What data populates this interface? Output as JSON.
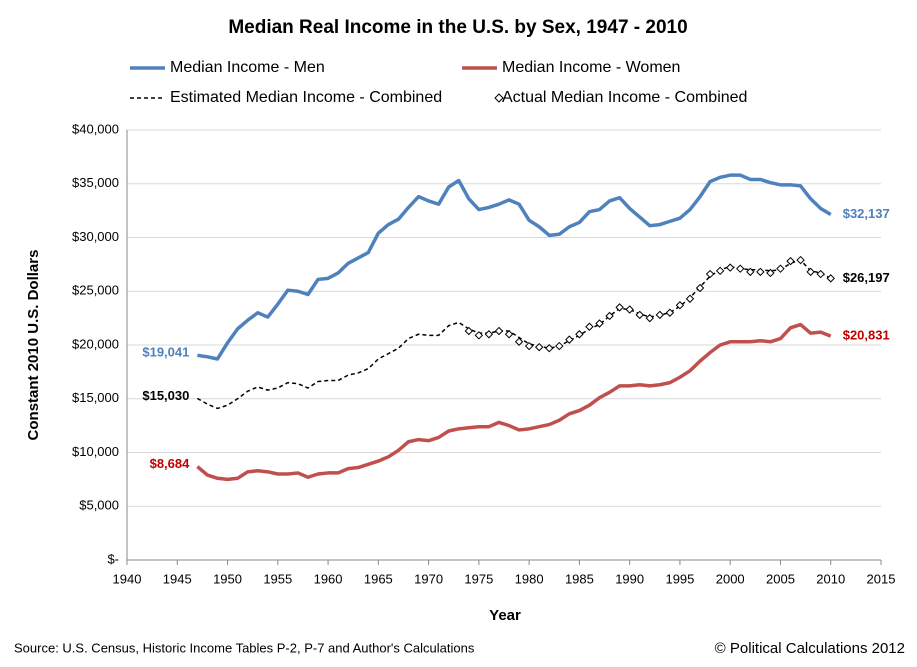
{
  "chart_data": {
    "type": "line",
    "title": "Median Real Income in the U.S. by Sex, 1947 - 2010",
    "x_label": "Year",
    "y_label": "Constant 2010 U.S. Dollars",
    "source": "Source: U.S. Census, Historic Income Tables P-2, P-7 and Author's Calculations",
    "credit": "© Political Calculations 2012",
    "xlim": [
      1940,
      2015
    ],
    "xticks": [
      1940,
      1945,
      1950,
      1955,
      1960,
      1965,
      1970,
      1975,
      1980,
      1985,
      1990,
      1995,
      2000,
      2005,
      2010,
      2015
    ],
    "ylim": [
      0,
      40000
    ],
    "yticks": [
      {
        "value": 0,
        "label": "$-"
      },
      {
        "value": 5000,
        "label": "$5,000"
      },
      {
        "value": 10000,
        "label": "$10,000"
      },
      {
        "value": 15000,
        "label": "$15,000"
      },
      {
        "value": 20000,
        "label": "$20,000"
      },
      {
        "value": 25000,
        "label": "$25,000"
      },
      {
        "value": 30000,
        "label": "$30,000"
      },
      {
        "value": 35000,
        "label": "$35,000"
      },
      {
        "value": 40000,
        "label": "$40,000"
      }
    ],
    "grid": true,
    "x": [
      1947,
      1948,
      1949,
      1950,
      1951,
      1952,
      1953,
      1954,
      1955,
      1956,
      1957,
      1958,
      1959,
      1960,
      1961,
      1962,
      1963,
      1964,
      1965,
      1966,
      1967,
      1968,
      1969,
      1970,
      1971,
      1972,
      1973,
      1974,
      1975,
      1976,
      1977,
      1978,
      1979,
      1980,
      1981,
      1982,
      1983,
      1984,
      1985,
      1986,
      1987,
      1988,
      1989,
      1990,
      1991,
      1992,
      1993,
      1994,
      1995,
      1996,
      1997,
      1998,
      1999,
      2000,
      2001,
      2002,
      2003,
      2004,
      2005,
      2006,
      2007,
      2008,
      2009,
      2010
    ],
    "series": [
      {
        "name": "Median Income - Men",
        "color": "#4f81bd",
        "style": "line",
        "label_color": "#4f81bd",
        "values": [
          19041,
          18900,
          18700,
          20200,
          21500,
          22300,
          23000,
          22600,
          23800,
          25100,
          25000,
          24700,
          26100,
          26200,
          26700,
          27600,
          28100,
          28600,
          30400,
          31200,
          31700,
          32800,
          33800,
          33400,
          33100,
          34700,
          35300,
          33600,
          32600,
          32800,
          33100,
          33500,
          33100,
          31600,
          31000,
          30200,
          30300,
          31000,
          31400,
          32400,
          32600,
          33400,
          33700,
          32700,
          31900,
          31100,
          31200,
          31500,
          31800,
          32600,
          33800,
          35200,
          35600,
          35800,
          35800,
          35400,
          35400,
          35100,
          34900,
          34900,
          34800,
          33600,
          32700,
          32137
        ],
        "value_labels": [
          "$19,041",
          null,
          null,
          null,
          null,
          null,
          null,
          null,
          null,
          null,
          null,
          null,
          null,
          null,
          null,
          null,
          null,
          null,
          null,
          null,
          null,
          null,
          null,
          null,
          null,
          null,
          null,
          null,
          null,
          null,
          null,
          null,
          null,
          null,
          null,
          null,
          null,
          null,
          null,
          null,
          null,
          null,
          null,
          null,
          null,
          null,
          null,
          null,
          null,
          null,
          null,
          null,
          null,
          null,
          null,
          null,
          null,
          null,
          null,
          null,
          null,
          null,
          null,
          "$32,137"
        ]
      },
      {
        "name": "Median Income - Women",
        "color": "#c0504d",
        "style": "line",
        "label_color": "#c00000",
        "values": [
          8684,
          7900,
          7600,
          7500,
          7600,
          8200,
          8300,
          8200,
          8000,
          8000,
          8100,
          7700,
          8000,
          8100,
          8100,
          8500,
          8600,
          8900,
          9200,
          9600,
          10200,
          11000,
          11200,
          11100,
          11400,
          12000,
          12200,
          12300,
          12400,
          12400,
          12800,
          12500,
          12100,
          12200,
          12400,
          12600,
          13000,
          13600,
          13900,
          14400,
          15100,
          15600,
          16200,
          16200,
          16300,
          16200,
          16300,
          16500,
          17000,
          17600,
          18500,
          19300,
          20000,
          20300,
          20300,
          20300,
          20400,
          20300,
          20600,
          21600,
          21900,
          21100,
          21200,
          20831
        ],
        "value_labels": [
          "$8,684",
          null,
          null,
          null,
          null,
          null,
          null,
          null,
          null,
          null,
          null,
          null,
          null,
          null,
          null,
          null,
          null,
          null,
          null,
          null,
          null,
          null,
          null,
          null,
          null,
          null,
          null,
          null,
          null,
          null,
          null,
          null,
          null,
          null,
          null,
          null,
          null,
          null,
          null,
          null,
          null,
          null,
          null,
          null,
          null,
          null,
          null,
          null,
          null,
          null,
          null,
          null,
          null,
          null,
          null,
          null,
          null,
          null,
          null,
          null,
          null,
          null,
          null,
          "$20,831"
        ]
      },
      {
        "name": "Estimated Median Income - Combined",
        "color": "#000000",
        "style": "dashed",
        "label_color": "#000000",
        "values": [
          15030,
          14500,
          14100,
          14400,
          15000,
          15700,
          16100,
          15800,
          16000,
          16500,
          16400,
          16000,
          16600,
          16700,
          16700,
          17200,
          17400,
          17800,
          18700,
          19200,
          19700,
          20600,
          21000,
          20900,
          20900,
          21800,
          22100,
          21500,
          21100,
          21100,
          21300,
          21300,
          20700,
          20100,
          19900,
          19700,
          19900,
          20400,
          20900,
          21500,
          21900,
          22700,
          23400,
          23300,
          22900,
          22600,
          22800,
          23000,
          23600,
          24400,
          25400,
          26400,
          27000,
          27300,
          27100,
          27000,
          27000,
          26900,
          27000,
          27600,
          27900,
          26900,
          26700,
          26197
        ],
        "value_labels": [
          "$15,030",
          null,
          null,
          null,
          null,
          null,
          null,
          null,
          null,
          null,
          null,
          null,
          null,
          null,
          null,
          null,
          null,
          null,
          null,
          null,
          null,
          null,
          null,
          null,
          null,
          null,
          null,
          null,
          null,
          null,
          null,
          null,
          null,
          null,
          null,
          null,
          null,
          null,
          null,
          null,
          null,
          null,
          null,
          null,
          null,
          null,
          null,
          null,
          null,
          null,
          null,
          null,
          null,
          null,
          null,
          null,
          null,
          null,
          null,
          null,
          null,
          null,
          null,
          "$26,197"
        ]
      },
      {
        "name": "Actual Median Income - Combined",
        "color": "#000000",
        "style": "markers",
        "values": [
          null,
          null,
          null,
          null,
          null,
          null,
          null,
          null,
          null,
          null,
          null,
          null,
          null,
          null,
          null,
          null,
          null,
          null,
          null,
          null,
          null,
          null,
          null,
          null,
          null,
          null,
          null,
          21300,
          20900,
          21000,
          21300,
          21000,
          20300,
          19900,
          19800,
          19700,
          19900,
          20500,
          21000,
          21700,
          22000,
          22700,
          23500,
          23300,
          22800,
          22500,
          22800,
          23000,
          23700,
          24300,
          25300,
          26600,
          26900,
          27200,
          27100,
          26800,
          26800,
          26700,
          27100,
          27800,
          27900,
          26800,
          26600,
          26197
        ]
      }
    ]
  }
}
